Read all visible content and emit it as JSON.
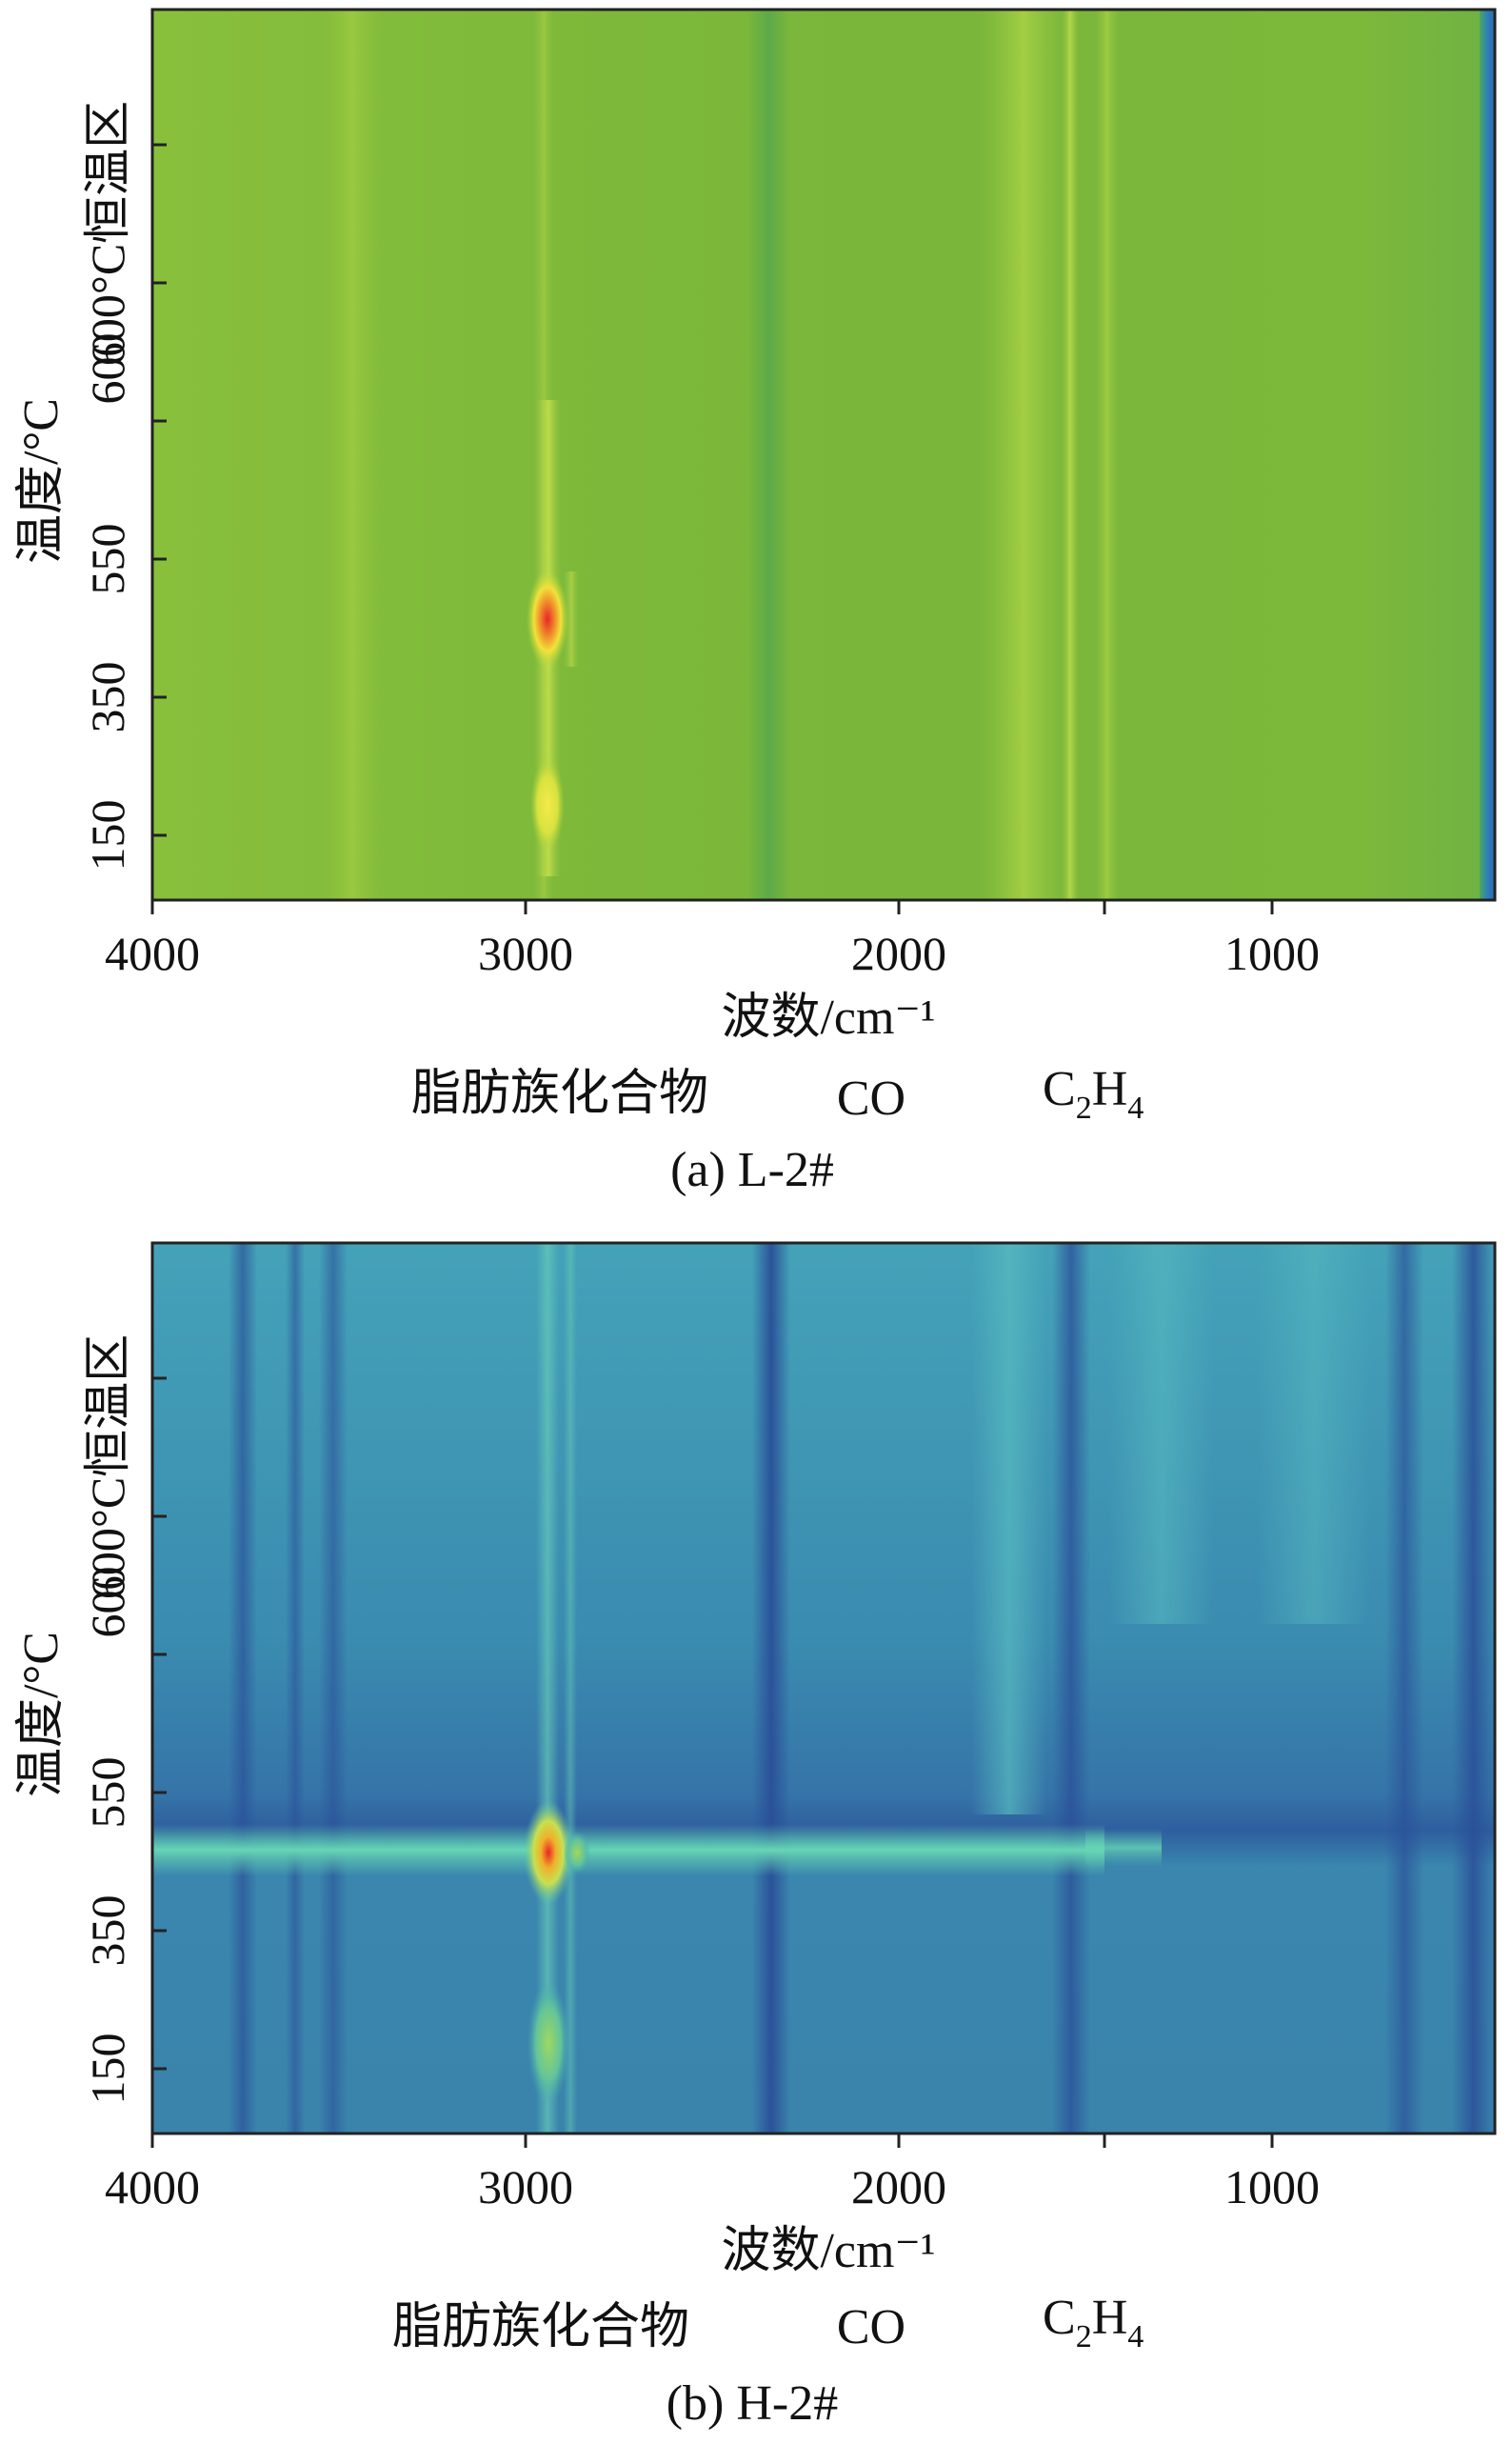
{
  "chart_data": [
    {
      "type": "heatmap",
      "caption": "(a) L-2#",
      "xlabel": "波数/cm⁻¹",
      "ylabel": "温度/°C",
      "ylabel_zone": "600°C恒温区",
      "x_ticks": [
        "4000",
        "3000",
        "2000",
        "1000"
      ],
      "y_ticks": [
        "150",
        "350",
        "550",
        "600"
      ],
      "xlim": [
        4000,
        400
      ],
      "band_labels": [
        "脂肪族化合物",
        "CO",
        "C",
        "2",
        "H",
        "4"
      ],
      "colors": {
        "base": "#7db83a",
        "peak": "#e8262a",
        "mid": "#f2e23a"
      },
      "peaks": [
        {
          "wavenumber": 2930,
          "level": "high",
          "label": "脂肪族化合物"
        },
        {
          "wavenumber": 2930,
          "level": "low",
          "label": "脂肪族化合物"
        }
      ]
    },
    {
      "type": "heatmap",
      "caption": "(b) H-2#",
      "xlabel": "波数/cm⁻¹",
      "ylabel": "温度/°C",
      "ylabel_zone": "600°C恒温区",
      "x_ticks": [
        "4000",
        "3000",
        "2000",
        "1000"
      ],
      "y_ticks": [
        "150",
        "350",
        "550",
        "600"
      ],
      "xlim": [
        4000,
        400
      ],
      "band_labels": [
        "脂肪族化合物",
        "CO",
        "C",
        "2",
        "H",
        "4"
      ],
      "colors": {
        "base": "#3f86a8",
        "peak": "#e8262a",
        "mid": "#c7e050",
        "dark": "#2a4f98"
      },
      "peaks": [
        {
          "wavenumber": 2930,
          "level": "high",
          "label": "脂肪族化合物"
        },
        {
          "wavenumber": 2930,
          "level": "low",
          "label": "脂肪族化合物"
        }
      ]
    }
  ]
}
